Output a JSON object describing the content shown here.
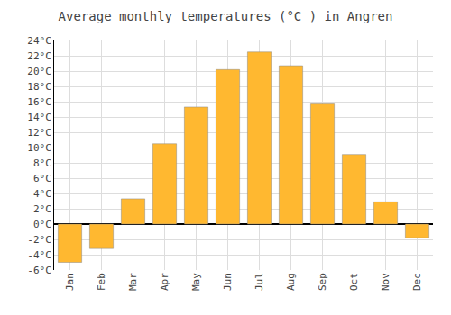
{
  "chart_data": {
    "type": "bar",
    "title": "Average monthly temperatures (°C ) in Angren",
    "categories": [
      "Jan",
      "Feb",
      "Mar",
      "Apr",
      "May",
      "Jun",
      "Jul",
      "Aug",
      "Sep",
      "Oct",
      "Nov",
      "Dec"
    ],
    "values": [
      -5.0,
      -3.2,
      3.3,
      10.5,
      15.3,
      20.2,
      22.5,
      20.7,
      15.7,
      9.1,
      2.9,
      -1.8
    ],
    "color": "#FFB830",
    "ylim": [
      -6,
      24
    ],
    "yticks": [
      {
        "value": -6,
        "label": "-6°C"
      },
      {
        "value": -4,
        "label": "-4°C"
      },
      {
        "value": -2,
        "label": "-2°C"
      },
      {
        "value": 0,
        "label": "0°C"
      },
      {
        "value": 2,
        "label": "2°C"
      },
      {
        "value": 4,
        "label": "4°C"
      },
      {
        "value": 6,
        "label": "6°C"
      },
      {
        "value": 8,
        "label": "8°C"
      },
      {
        "value": 10,
        "label": "10°C"
      },
      {
        "value": 12,
        "label": "12°C"
      },
      {
        "value": 14,
        "label": "14°C"
      },
      {
        "value": 16,
        "label": "16°C"
      },
      {
        "value": 18,
        "label": "18°C"
      },
      {
        "value": 20,
        "label": "20°C"
      },
      {
        "value": 22,
        "label": "22°C"
      },
      {
        "value": 24,
        "label": "24°C"
      }
    ],
    "grid": true
  }
}
